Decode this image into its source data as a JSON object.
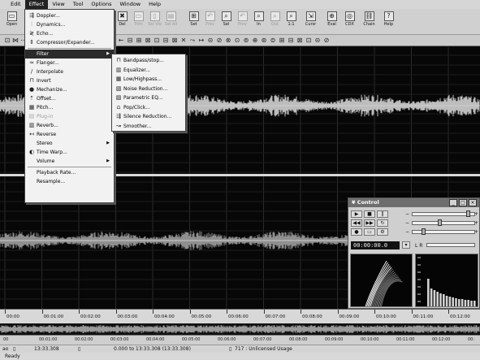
{
  "menubar": {
    "items": [
      "Edit",
      "Effect",
      "View",
      "Tool",
      "Options",
      "Window",
      "Help"
    ],
    "active_index": 1
  },
  "toolbar": {
    "open_label": "Open",
    "buttons": [
      {
        "label": "Del",
        "icon": "delete-icon",
        "enabled": true
      },
      {
        "label": "Trim",
        "icon": "trim-icon",
        "enabled": false
      },
      {
        "label": "Sel Vw",
        "icon": "select-view-icon",
        "enabled": false
      },
      {
        "label": "Sel All",
        "icon": "select-all-icon",
        "enabled": false
      },
      {
        "label": "Set",
        "icon": "set-icon",
        "enabled": true
      },
      {
        "label": "Prev",
        "icon": "zoom-previous-icon",
        "enabled": false
      },
      {
        "label": "Sel",
        "icon": "zoom-selection-icon",
        "enabled": true
      },
      {
        "label": "Prev",
        "icon": "zoom-prev-icon",
        "enabled": false
      },
      {
        "label": "In",
        "icon": "zoom-in-icon",
        "enabled": true
      },
      {
        "label": "Out",
        "icon": "zoom-out-icon",
        "enabled": false
      },
      {
        "label": "1:1",
        "icon": "zoom-normal-icon",
        "enabled": true
      },
      {
        "label": "Cursr",
        "icon": "cursor-icon",
        "enabled": true
      },
      {
        "label": "Eval",
        "icon": "eval-icon",
        "enabled": true
      },
      {
        "label": "CDX",
        "icon": "cdx-icon",
        "enabled": true
      },
      {
        "label": "Chain",
        "icon": "chain-icon",
        "enabled": true
      },
      {
        "label": "Help",
        "icon": "help-icon",
        "enabled": true
      }
    ]
  },
  "effect_menu": {
    "items": [
      {
        "label": "Doppler...",
        "icon": "doppler-icon"
      },
      {
        "label": "Dynamics...",
        "icon": "dynamics-icon"
      },
      {
        "label": "Echo...",
        "icon": "echo-icon"
      },
      {
        "label": "Compressor/Expander...",
        "icon": "compressor-icon"
      },
      {
        "label": "Filter",
        "icon": "",
        "submenu": true,
        "highlighted": true
      },
      {
        "label": "Flanger...",
        "icon": "flanger-icon"
      },
      {
        "label": "Interpolate",
        "icon": "interpolate-icon"
      },
      {
        "label": "Invert",
        "icon": "invert-icon"
      },
      {
        "label": "Mechanize...",
        "icon": "mechanize-icon"
      },
      {
        "label": "Offset...",
        "icon": "offset-icon"
      },
      {
        "label": "Pitch...",
        "icon": "pitch-icon"
      },
      {
        "label": "Plug-in",
        "icon": "plugin-icon",
        "disabled": true
      },
      {
        "label": "Reverb...",
        "icon": "reverb-icon"
      },
      {
        "label": "Reverse",
        "icon": "reverse-icon"
      },
      {
        "label": "Stereo",
        "icon": "",
        "submenu": true
      },
      {
        "label": "Time Warp...",
        "icon": "time-warp-icon"
      },
      {
        "label": "Volume",
        "icon": "",
        "submenu": true
      },
      {
        "label": "Playback Rate...",
        "icon": ""
      },
      {
        "label": "Resample...",
        "icon": ""
      }
    ]
  },
  "filter_submenu": {
    "items": [
      {
        "label": "Bandpass/stop...",
        "icon": "bandpass-icon"
      },
      {
        "label": "Equalizer...",
        "icon": "equalizer-icon"
      },
      {
        "label": "Low/Highpass...",
        "icon": "low-highpass-icon"
      },
      {
        "label": "Noise Reduction...",
        "icon": "noise-reduction-icon"
      },
      {
        "label": "Parametric EQ...",
        "icon": "parametric-eq-icon"
      },
      {
        "label": "Pop/Click...",
        "icon": "pop-click-icon"
      },
      {
        "label": "Silence Reduction...",
        "icon": "silence-reduction-icon"
      },
      {
        "label": "Smoother...",
        "icon": "smoother-icon"
      }
    ]
  },
  "ruler": {
    "labels": [
      "00:00",
      "00:01:00",
      "00:02:00",
      "00:03:00",
      "00:04:00",
      "00:05:00",
      "00:06:00",
      "00:07:00",
      "00:08:00",
      "00:09:00",
      "00:10:00",
      "00:11:00",
      "00:12:00",
      "00:"
    ]
  },
  "ruler2": {
    "labels": [
      "00",
      "00:01:00",
      "00:02:00",
      "00:03:00",
      "00:04:00",
      "00:05:00",
      "00:06:00",
      "00:07:00",
      "00:08:00",
      "00:09:00",
      "00:10:00",
      "00:11:00",
      "00:12:00",
      "00:"
    ]
  },
  "status": {
    "rate": "ao",
    "length": "13:33.308",
    "selection": "0.000 to 13:33.308 (13:33.308)",
    "license": "717 : Unlicensed Usage",
    "bottom": "Ready"
  },
  "control_panel": {
    "title": "Control",
    "counter": "00:00:00.0"
  }
}
